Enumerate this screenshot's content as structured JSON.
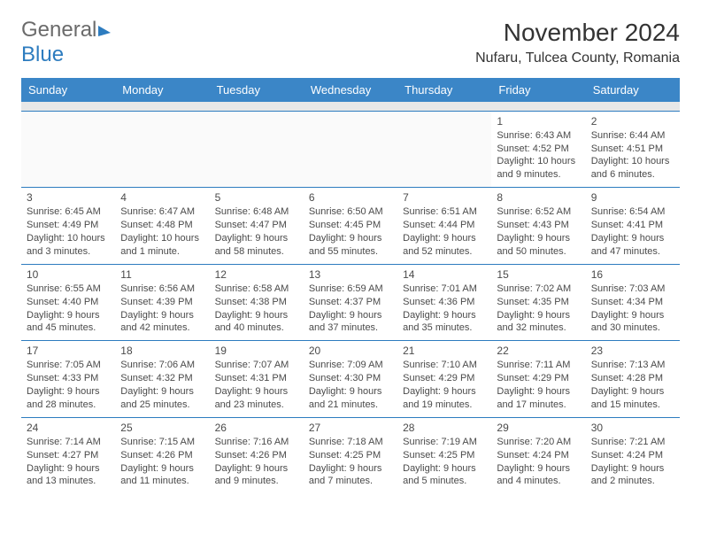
{
  "logo": {
    "general": "General",
    "blue": "Blue"
  },
  "title": "November 2024",
  "location": "Nufaru, Tulcea County, Romania",
  "week_header": {
    "bg": "#3b86c7",
    "days": [
      "Sunday",
      "Monday",
      "Tuesday",
      "Wednesday",
      "Thursday",
      "Friday",
      "Saturday"
    ]
  },
  "colors": {
    "header_bg": "#3b86c7",
    "row_divider": "#2d7cbf",
    "spacer_bg": "#e8e8e8",
    "text": "#4a4a4a"
  },
  "cells": [
    [
      null,
      null,
      null,
      null,
      null,
      {
        "n": "1",
        "sunrise": "Sunrise: 6:43 AM",
        "sunset": "Sunset: 4:52 PM",
        "daylight": "Daylight: 10 hours and 9 minutes."
      },
      {
        "n": "2",
        "sunrise": "Sunrise: 6:44 AM",
        "sunset": "Sunset: 4:51 PM",
        "daylight": "Daylight: 10 hours and 6 minutes."
      }
    ],
    [
      {
        "n": "3",
        "sunrise": "Sunrise: 6:45 AM",
        "sunset": "Sunset: 4:49 PM",
        "daylight": "Daylight: 10 hours and 3 minutes."
      },
      {
        "n": "4",
        "sunrise": "Sunrise: 6:47 AM",
        "sunset": "Sunset: 4:48 PM",
        "daylight": "Daylight: 10 hours and 1 minute."
      },
      {
        "n": "5",
        "sunrise": "Sunrise: 6:48 AM",
        "sunset": "Sunset: 4:47 PM",
        "daylight": "Daylight: 9 hours and 58 minutes."
      },
      {
        "n": "6",
        "sunrise": "Sunrise: 6:50 AM",
        "sunset": "Sunset: 4:45 PM",
        "daylight": "Daylight: 9 hours and 55 minutes."
      },
      {
        "n": "7",
        "sunrise": "Sunrise: 6:51 AM",
        "sunset": "Sunset: 4:44 PM",
        "daylight": "Daylight: 9 hours and 52 minutes."
      },
      {
        "n": "8",
        "sunrise": "Sunrise: 6:52 AM",
        "sunset": "Sunset: 4:43 PM",
        "daylight": "Daylight: 9 hours and 50 minutes."
      },
      {
        "n": "9",
        "sunrise": "Sunrise: 6:54 AM",
        "sunset": "Sunset: 4:41 PM",
        "daylight": "Daylight: 9 hours and 47 minutes."
      }
    ],
    [
      {
        "n": "10",
        "sunrise": "Sunrise: 6:55 AM",
        "sunset": "Sunset: 4:40 PM",
        "daylight": "Daylight: 9 hours and 45 minutes."
      },
      {
        "n": "11",
        "sunrise": "Sunrise: 6:56 AM",
        "sunset": "Sunset: 4:39 PM",
        "daylight": "Daylight: 9 hours and 42 minutes."
      },
      {
        "n": "12",
        "sunrise": "Sunrise: 6:58 AM",
        "sunset": "Sunset: 4:38 PM",
        "daylight": "Daylight: 9 hours and 40 minutes."
      },
      {
        "n": "13",
        "sunrise": "Sunrise: 6:59 AM",
        "sunset": "Sunset: 4:37 PM",
        "daylight": "Daylight: 9 hours and 37 minutes."
      },
      {
        "n": "14",
        "sunrise": "Sunrise: 7:01 AM",
        "sunset": "Sunset: 4:36 PM",
        "daylight": "Daylight: 9 hours and 35 minutes."
      },
      {
        "n": "15",
        "sunrise": "Sunrise: 7:02 AM",
        "sunset": "Sunset: 4:35 PM",
        "daylight": "Daylight: 9 hours and 32 minutes."
      },
      {
        "n": "16",
        "sunrise": "Sunrise: 7:03 AM",
        "sunset": "Sunset: 4:34 PM",
        "daylight": "Daylight: 9 hours and 30 minutes."
      }
    ],
    [
      {
        "n": "17",
        "sunrise": "Sunrise: 7:05 AM",
        "sunset": "Sunset: 4:33 PM",
        "daylight": "Daylight: 9 hours and 28 minutes."
      },
      {
        "n": "18",
        "sunrise": "Sunrise: 7:06 AM",
        "sunset": "Sunset: 4:32 PM",
        "daylight": "Daylight: 9 hours and 25 minutes."
      },
      {
        "n": "19",
        "sunrise": "Sunrise: 7:07 AM",
        "sunset": "Sunset: 4:31 PM",
        "daylight": "Daylight: 9 hours and 23 minutes."
      },
      {
        "n": "20",
        "sunrise": "Sunrise: 7:09 AM",
        "sunset": "Sunset: 4:30 PM",
        "daylight": "Daylight: 9 hours and 21 minutes."
      },
      {
        "n": "21",
        "sunrise": "Sunrise: 7:10 AM",
        "sunset": "Sunset: 4:29 PM",
        "daylight": "Daylight: 9 hours and 19 minutes."
      },
      {
        "n": "22",
        "sunrise": "Sunrise: 7:11 AM",
        "sunset": "Sunset: 4:29 PM",
        "daylight": "Daylight: 9 hours and 17 minutes."
      },
      {
        "n": "23",
        "sunrise": "Sunrise: 7:13 AM",
        "sunset": "Sunset: 4:28 PM",
        "daylight": "Daylight: 9 hours and 15 minutes."
      }
    ],
    [
      {
        "n": "24",
        "sunrise": "Sunrise: 7:14 AM",
        "sunset": "Sunset: 4:27 PM",
        "daylight": "Daylight: 9 hours and 13 minutes."
      },
      {
        "n": "25",
        "sunrise": "Sunrise: 7:15 AM",
        "sunset": "Sunset: 4:26 PM",
        "daylight": "Daylight: 9 hours and 11 minutes."
      },
      {
        "n": "26",
        "sunrise": "Sunrise: 7:16 AM",
        "sunset": "Sunset: 4:26 PM",
        "daylight": "Daylight: 9 hours and 9 minutes."
      },
      {
        "n": "27",
        "sunrise": "Sunrise: 7:18 AM",
        "sunset": "Sunset: 4:25 PM",
        "daylight": "Daylight: 9 hours and 7 minutes."
      },
      {
        "n": "28",
        "sunrise": "Sunrise: 7:19 AM",
        "sunset": "Sunset: 4:25 PM",
        "daylight": "Daylight: 9 hours and 5 minutes."
      },
      {
        "n": "29",
        "sunrise": "Sunrise: 7:20 AM",
        "sunset": "Sunset: 4:24 PM",
        "daylight": "Daylight: 9 hours and 4 minutes."
      },
      {
        "n": "30",
        "sunrise": "Sunrise: 7:21 AM",
        "sunset": "Sunset: 4:24 PM",
        "daylight": "Daylight: 9 hours and 2 minutes."
      }
    ]
  ]
}
